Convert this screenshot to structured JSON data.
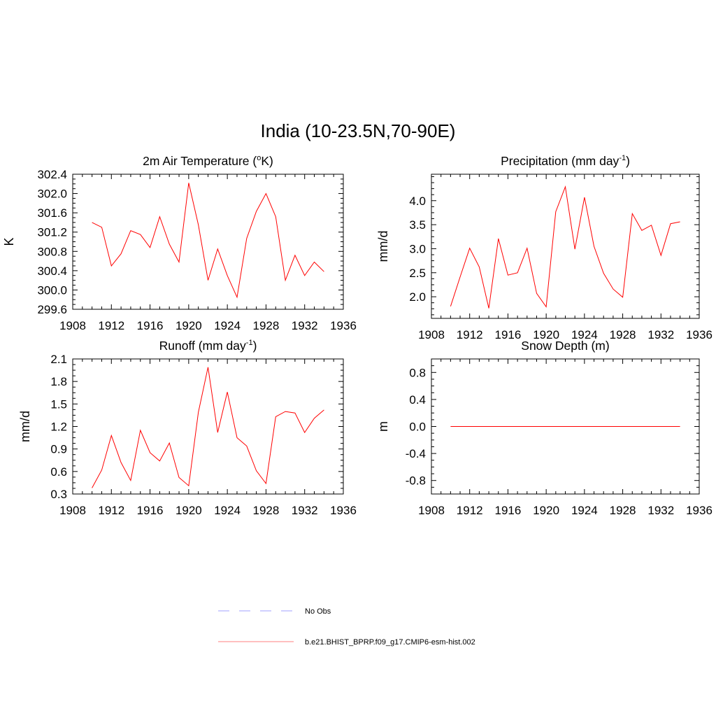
{
  "title": "India (10-23.5N,70-90E)",
  "legend": {
    "items": [
      {
        "label": "No Obs",
        "color": "#a0a0ff",
        "dash": "dashed"
      },
      {
        "label": "b.e21.BHIST_BPRP.f09_g17.CMIP6-esm-hist.002",
        "color": "#ff8080",
        "dash": "solid"
      }
    ]
  },
  "chart_data": [
    {
      "type": "line",
      "title_main": "2m Air Temperature (",
      "title_sup": "o",
      "title_end": "K)",
      "ylabel": "K",
      "xlim": [
        1908,
        1936
      ],
      "ylim": [
        299.6,
        302.4
      ],
      "xticks": [
        "1908",
        "1912",
        "1916",
        "1920",
        "1924",
        "1928",
        "1932",
        "1936"
      ],
      "yticks": [
        "299.6",
        "300.0",
        "300.4",
        "300.8",
        "301.2",
        "301.6",
        "302.0",
        "302.4"
      ],
      "series": [
        {
          "color": "#ff0000",
          "x": [
            1910,
            1911,
            1912,
            1913,
            1914,
            1915,
            1916,
            1917,
            1918,
            1919,
            1920,
            1921,
            1922,
            1923,
            1924,
            1925,
            1926,
            1927,
            1928,
            1929,
            1930,
            1931,
            1932,
            1933,
            1934
          ],
          "y": [
            301.4,
            301.3,
            300.5,
            300.75,
            301.23,
            301.15,
            300.88,
            301.52,
            300.95,
            300.58,
            302.22,
            301.35,
            300.2,
            300.85,
            300.3,
            299.85,
            301.07,
            301.63,
            302.0,
            301.52,
            300.2,
            300.72,
            300.3,
            300.58,
            300.38
          ]
        }
      ]
    },
    {
      "type": "line",
      "title_main": "Precipitation (mm day",
      "title_sup": "-1",
      "title_end": ")",
      "ylabel": "mm/d",
      "xlim": [
        1908,
        1936
      ],
      "ylim": [
        1.55,
        4.55
      ],
      "xticks": [
        "1908",
        "1912",
        "1916",
        "1920",
        "1924",
        "1928",
        "1932",
        "1936"
      ],
      "yticks": [
        "2.0",
        "2.5",
        "3.0",
        "3.5",
        "4.0"
      ],
      "series": [
        {
          "color": "#ff0000",
          "x": [
            1910,
            1911,
            1912,
            1913,
            1914,
            1915,
            1916,
            1917,
            1918,
            1919,
            1920,
            1921,
            1922,
            1923,
            1924,
            1925,
            1926,
            1927,
            1928,
            1929,
            1930,
            1931,
            1932,
            1933,
            1934
          ],
          "y": [
            1.8,
            2.41,
            3.01,
            2.62,
            1.76,
            3.21,
            2.45,
            2.5,
            3.01,
            2.07,
            1.79,
            3.77,
            4.29,
            2.99,
            4.07,
            3.05,
            2.49,
            2.16,
            1.99,
            3.73,
            3.38,
            3.49,
            2.86,
            3.52,
            3.56
          ]
        }
      ]
    },
    {
      "type": "line",
      "title_main": "Runoff (mm day",
      "title_sup": "-1",
      "title_end": ")",
      "ylabel": "mm/d",
      "xlim": [
        1908,
        1936
      ],
      "ylim": [
        0.3,
        2.1
      ],
      "xticks": [
        "1908",
        "1912",
        "1916",
        "1920",
        "1924",
        "1928",
        "1932",
        "1936"
      ],
      "yticks": [
        "0.3",
        "0.6",
        "0.9",
        "1.2",
        "1.5",
        "1.8",
        "2.1"
      ],
      "series": [
        {
          "color": "#ff0000",
          "x": [
            1910,
            1911,
            1912,
            1913,
            1914,
            1915,
            1916,
            1917,
            1918,
            1919,
            1920,
            1921,
            1922,
            1923,
            1924,
            1925,
            1926,
            1927,
            1928,
            1929,
            1930,
            1931,
            1932,
            1933,
            1934
          ],
          "y": [
            0.38,
            0.62,
            1.08,
            0.72,
            0.48,
            1.15,
            0.85,
            0.74,
            0.98,
            0.52,
            0.41,
            1.39,
            1.99,
            1.12,
            1.66,
            1.05,
            0.94,
            0.61,
            0.44,
            1.33,
            1.4,
            1.38,
            1.12,
            1.31,
            1.42
          ]
        }
      ]
    },
    {
      "type": "line",
      "title_main": "Snow Depth (m)",
      "title_sup": "",
      "title_end": "",
      "ylabel": "m",
      "xlim": [
        1908,
        1936
      ],
      "ylim": [
        -1.0,
        1.0
      ],
      "xticks": [
        "1908",
        "1912",
        "1916",
        "1920",
        "1924",
        "1928",
        "1932",
        "1936"
      ],
      "yticks": [
        "-0.8",
        "-0.4",
        "0.0",
        "0.4",
        "0.8"
      ],
      "series": [
        {
          "color": "#ff0000",
          "x": [
            1910,
            1934
          ],
          "y": [
            0.0,
            0.0
          ]
        }
      ]
    }
  ]
}
